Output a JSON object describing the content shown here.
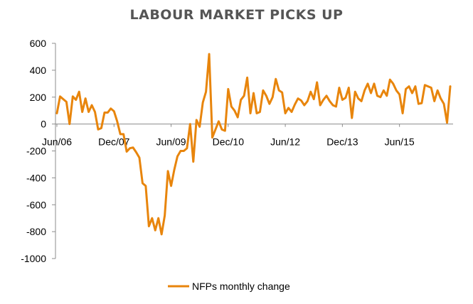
{
  "chart_data": {
    "type": "line",
    "title": "LABOUR MARKET PICKS UP",
    "xlabel": "",
    "ylabel": "",
    "ylim": [
      -1000,
      600
    ],
    "yticks": [
      600,
      400,
      200,
      0,
      -200,
      -400,
      -600,
      -800,
      -1000
    ],
    "xticks": [
      "Jun/06",
      "Dec/07",
      "Jun/09",
      "Dec/10",
      "Jun/12",
      "Dec/13",
      "Jun/15"
    ],
    "grid": false,
    "legend_position": "bottom",
    "series": [
      {
        "name": "NFPs monthly change",
        "color": "#E8850C",
        "values": [
          80,
          205,
          185,
          165,
          0,
          205,
          180,
          240,
          90,
          190,
          90,
          140,
          90,
          -40,
          -30,
          85,
          85,
          115,
          95,
          20,
          -75,
          -75,
          -205,
          -180,
          -175,
          -210,
          -250,
          -440,
          -460,
          -760,
          -700,
          -790,
          -700,
          -820,
          -680,
          -350,
          -460,
          -340,
          -240,
          -200,
          -200,
          -180,
          0,
          -280,
          30,
          -20,
          160,
          240,
          520,
          -100,
          -40,
          20,
          -40,
          -50,
          260,
          130,
          100,
          50,
          180,
          210,
          345,
          80,
          230,
          80,
          90,
          250,
          210,
          150,
          200,
          335,
          250,
          235,
          80,
          120,
          90,
          145,
          190,
          175,
          140,
          170,
          240,
          185,
          310,
          140,
          180,
          210,
          170,
          140,
          130,
          270,
          180,
          195,
          270,
          45,
          240,
          190,
          170,
          250,
          300,
          230,
          300,
          210,
          200,
          250,
          210,
          330,
          300,
          250,
          220,
          80,
          260,
          280,
          230,
          280,
          150,
          155,
          290,
          280,
          270,
          170,
          250,
          190,
          150,
          10,
          280
        ]
      }
    ]
  }
}
